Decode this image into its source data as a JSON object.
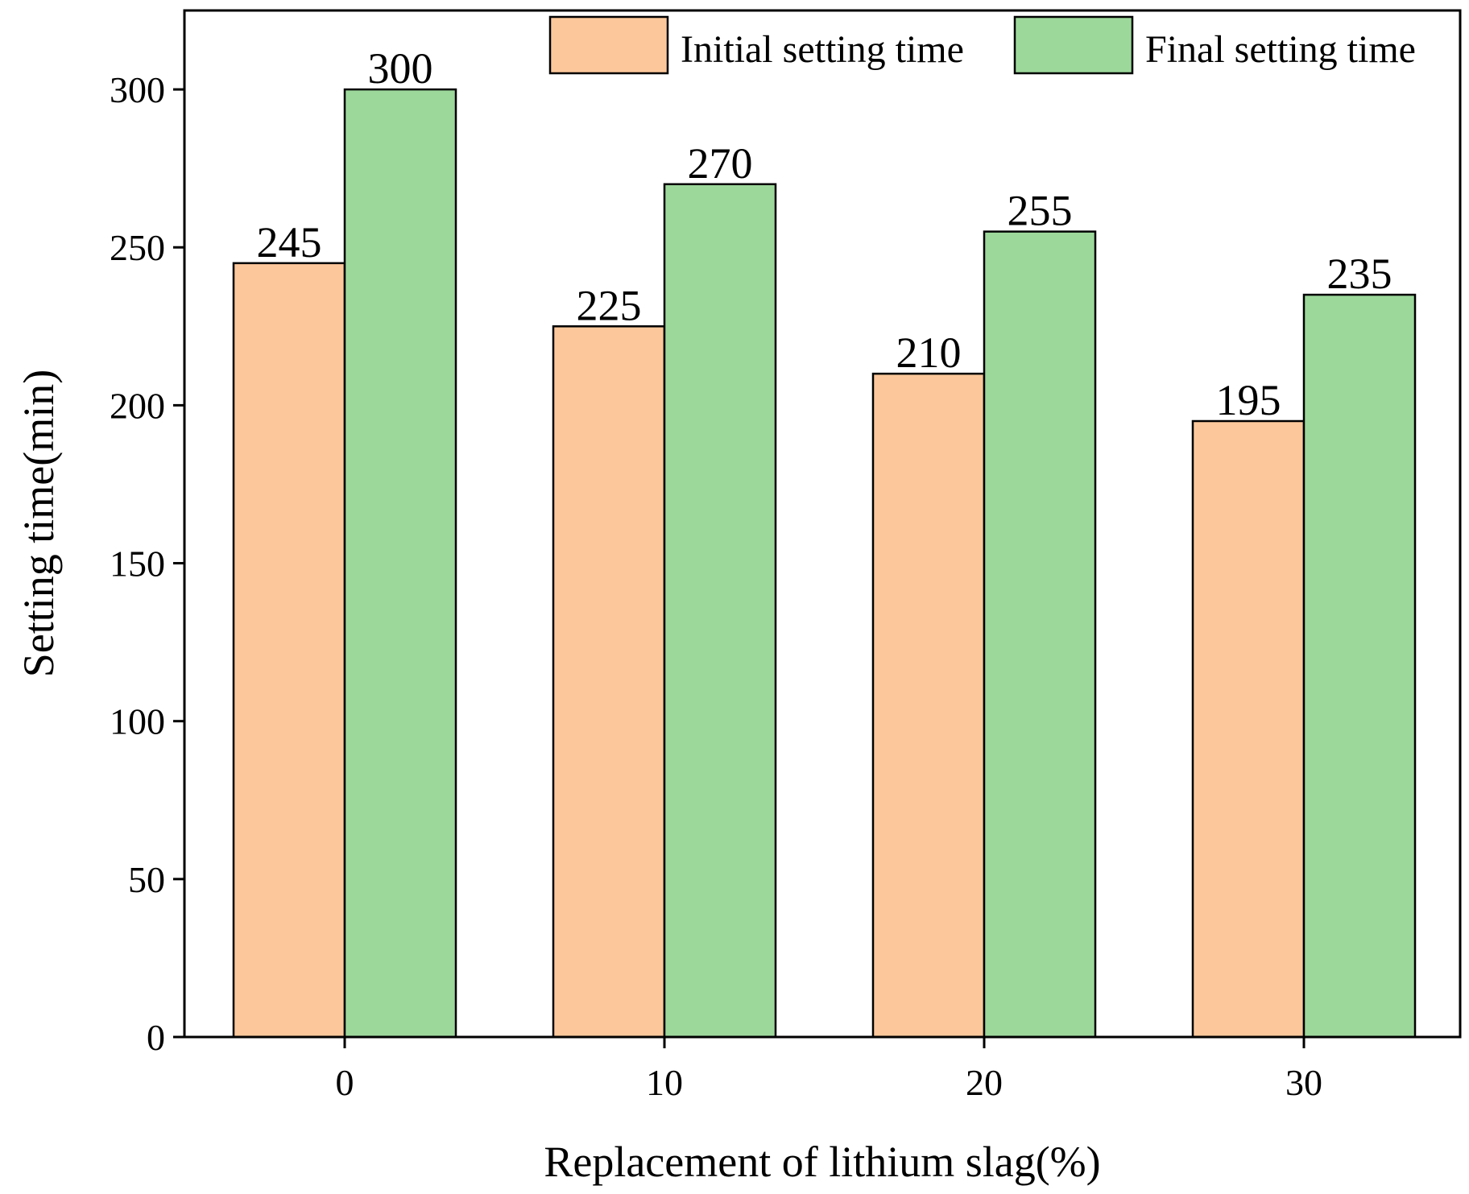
{
  "chart_data": {
    "type": "bar",
    "title": "",
    "xlabel": "Replacement of lithium slag(%)",
    "ylabel": "Setting time(min)",
    "categories": [
      "0",
      "10",
      "20",
      "30"
    ],
    "series": [
      {
        "name": "Initial setting time",
        "values": [
          245,
          225,
          210,
          195
        ],
        "color": "#FCC89B"
      },
      {
        "name": "Final setting time",
        "values": [
          300,
          270,
          255,
          235
        ],
        "color": "#9DD89B"
      }
    ],
    "ylim": [
      0,
      325
    ],
    "yticks": [
      "0",
      "50",
      "100",
      "150",
      "200",
      "250",
      "300"
    ],
    "legend": "top-right",
    "grid": false,
    "data_labels": true
  }
}
